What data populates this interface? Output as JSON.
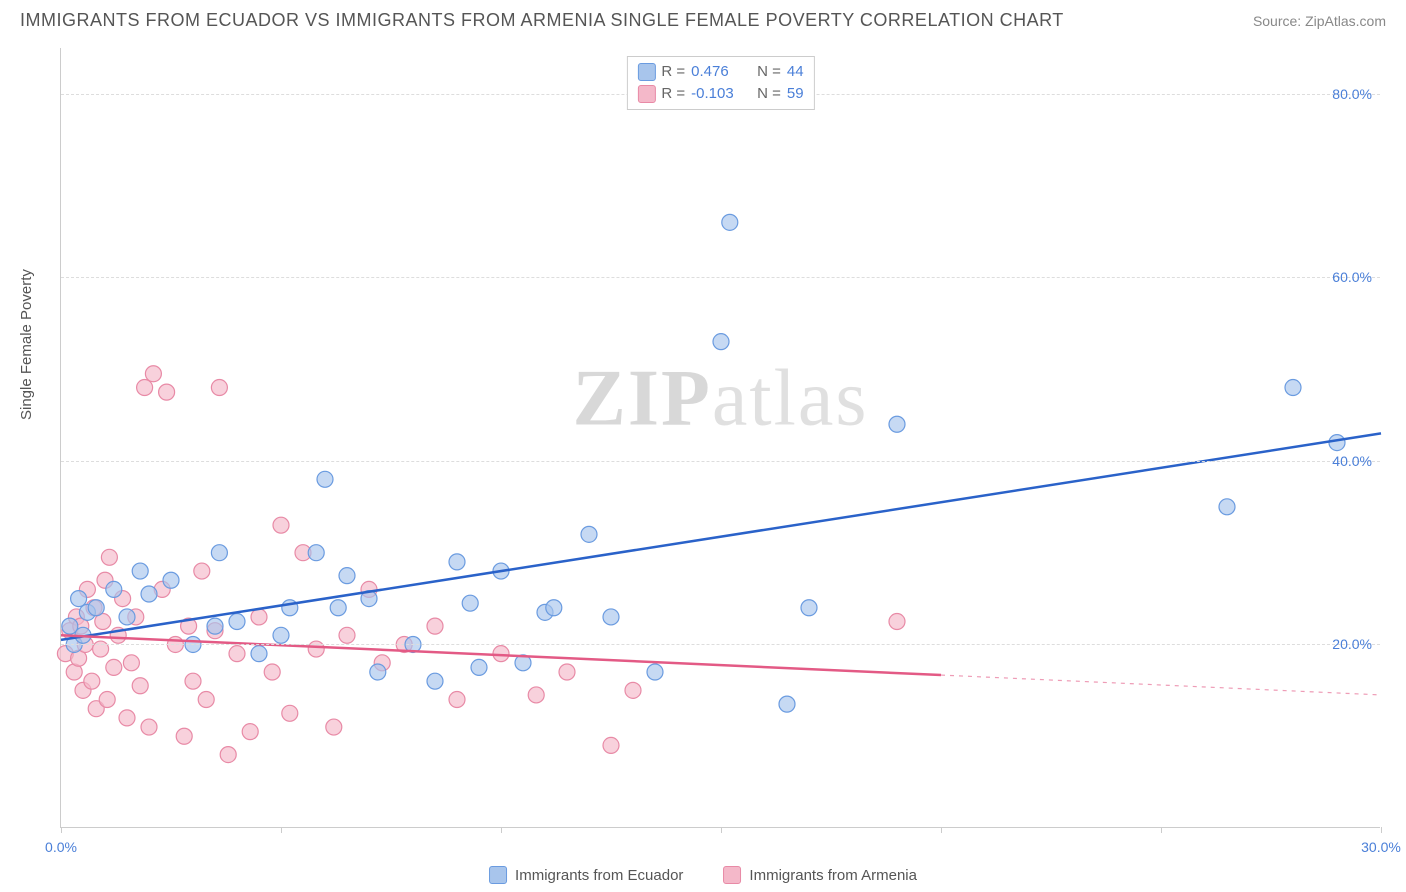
{
  "title": "IMMIGRANTS FROM ECUADOR VS IMMIGRANTS FROM ARMENIA SINGLE FEMALE POVERTY CORRELATION CHART",
  "source": "Source: ZipAtlas.com",
  "ylabel": "Single Female Poverty",
  "watermark_bold": "ZIP",
  "watermark_rest": "atlas",
  "chart": {
    "type": "scatter",
    "background_color": "#ffffff",
    "grid_color": "#dddddd",
    "axis_color": "#cccccc",
    "xlim": [
      0,
      30
    ],
    "ylim": [
      0,
      85
    ],
    "xticks": [
      {
        "pos": 0.0,
        "label": "0.0%",
        "color": "#4a7fd8"
      },
      {
        "pos": 30.0,
        "label": "30.0%",
        "color": "#4a7fd8"
      }
    ],
    "xtick_marks": [
      0,
      5,
      10,
      15,
      20,
      25,
      30
    ],
    "yticks": [
      {
        "pos": 20.0,
        "label": "20.0%",
        "color": "#4a7fd8"
      },
      {
        "pos": 40.0,
        "label": "40.0%",
        "color": "#4a7fd8"
      },
      {
        "pos": 60.0,
        "label": "60.0%",
        "color": "#4a7fd8"
      },
      {
        "pos": 80.0,
        "label": "80.0%",
        "color": "#4a7fd8"
      }
    ],
    "series": [
      {
        "name": "Immigrants from Ecuador",
        "color_fill": "#a8c5ec",
        "color_stroke": "#6a9be0",
        "line_color": "#2a62c9",
        "marker_radius": 8,
        "marker_opacity": 0.65,
        "R_label": "R =",
        "R_value": "0.476",
        "N_label": "N =",
        "N_value": "44",
        "trend": {
          "x0": 0,
          "y0": 20.5,
          "x1": 30,
          "y1": 43.0,
          "solid_to_x": 30
        },
        "points": [
          [
            0.2,
            22
          ],
          [
            0.3,
            20
          ],
          [
            0.4,
            25
          ],
          [
            0.5,
            21
          ],
          [
            0.6,
            23.5
          ],
          [
            0.8,
            24
          ],
          [
            1.2,
            26
          ],
          [
            1.5,
            23
          ],
          [
            1.8,
            28
          ],
          [
            2.0,
            25.5
          ],
          [
            2.5,
            27
          ],
          [
            3.0,
            20
          ],
          [
            3.5,
            22
          ],
          [
            3.6,
            30
          ],
          [
            4.0,
            22.5
          ],
          [
            4.5,
            19
          ],
          [
            5.0,
            21
          ],
          [
            5.2,
            24
          ],
          [
            5.8,
            30
          ],
          [
            6.0,
            38
          ],
          [
            6.3,
            24
          ],
          [
            6.5,
            27.5
          ],
          [
            7.0,
            25
          ],
          [
            7.2,
            17
          ],
          [
            8.0,
            20
          ],
          [
            8.5,
            16
          ],
          [
            9.0,
            29
          ],
          [
            9.3,
            24.5
          ],
          [
            9.5,
            17.5
          ],
          [
            10.0,
            28
          ],
          [
            10.5,
            18
          ],
          [
            11.0,
            23.5
          ],
          [
            11.2,
            24
          ],
          [
            12.0,
            32
          ],
          [
            12.5,
            23
          ],
          [
            13.5,
            17
          ],
          [
            15.0,
            53
          ],
          [
            15.2,
            66
          ],
          [
            16.5,
            13.5
          ],
          [
            17.0,
            24
          ],
          [
            19.0,
            44
          ],
          [
            26.5,
            35
          ],
          [
            28.0,
            48
          ],
          [
            29.0,
            42
          ]
        ]
      },
      {
        "name": "Immigrants from Armenia",
        "color_fill": "#f4b8c9",
        "color_stroke": "#e88aa6",
        "line_color": "#e35a85",
        "marker_radius": 8,
        "marker_opacity": 0.65,
        "R_label": "R =",
        "R_value": "-0.103",
        "N_label": "N =",
        "N_value": "59",
        "trend": {
          "x0": 0,
          "y0": 21.0,
          "x1": 30,
          "y1": 14.5,
          "solid_to_x": 20
        },
        "points": [
          [
            0.1,
            19
          ],
          [
            0.2,
            21.5
          ],
          [
            0.3,
            17
          ],
          [
            0.35,
            23
          ],
          [
            0.4,
            18.5
          ],
          [
            0.45,
            22
          ],
          [
            0.5,
            15
          ],
          [
            0.55,
            20
          ],
          [
            0.6,
            26
          ],
          [
            0.7,
            16
          ],
          [
            0.75,
            24
          ],
          [
            0.8,
            13
          ],
          [
            0.9,
            19.5
          ],
          [
            0.95,
            22.5
          ],
          [
            1.0,
            27
          ],
          [
            1.05,
            14
          ],
          [
            1.1,
            29.5
          ],
          [
            1.2,
            17.5
          ],
          [
            1.3,
            21
          ],
          [
            1.4,
            25
          ],
          [
            1.5,
            12
          ],
          [
            1.6,
            18
          ],
          [
            1.7,
            23
          ],
          [
            1.8,
            15.5
          ],
          [
            1.9,
            48
          ],
          [
            2.0,
            11
          ],
          [
            2.1,
            49.5
          ],
          [
            2.3,
            26
          ],
          [
            2.4,
            47.5
          ],
          [
            2.6,
            20
          ],
          [
            2.8,
            10
          ],
          [
            2.9,
            22
          ],
          [
            3.0,
            16
          ],
          [
            3.2,
            28
          ],
          [
            3.3,
            14
          ],
          [
            3.5,
            21.5
          ],
          [
            3.6,
            48
          ],
          [
            3.8,
            8
          ],
          [
            4.0,
            19
          ],
          [
            4.3,
            10.5
          ],
          [
            4.5,
            23
          ],
          [
            4.8,
            17
          ],
          [
            5.0,
            33
          ],
          [
            5.2,
            12.5
          ],
          [
            5.5,
            30
          ],
          [
            5.8,
            19.5
          ],
          [
            6.2,
            11
          ],
          [
            6.5,
            21
          ],
          [
            7.0,
            26
          ],
          [
            7.3,
            18
          ],
          [
            7.8,
            20
          ],
          [
            8.5,
            22
          ],
          [
            9.0,
            14
          ],
          [
            10.0,
            19
          ],
          [
            10.8,
            14.5
          ],
          [
            11.5,
            17
          ],
          [
            12.5,
            9
          ],
          [
            13.0,
            15
          ],
          [
            19.0,
            22.5
          ]
        ]
      }
    ]
  },
  "legend_bottom": [
    {
      "label": "Immigrants from Ecuador",
      "fill": "#a8c5ec",
      "stroke": "#6a9be0"
    },
    {
      "label": "Immigrants from Armenia",
      "fill": "#f4b8c9",
      "stroke": "#e88aa6"
    }
  ]
}
